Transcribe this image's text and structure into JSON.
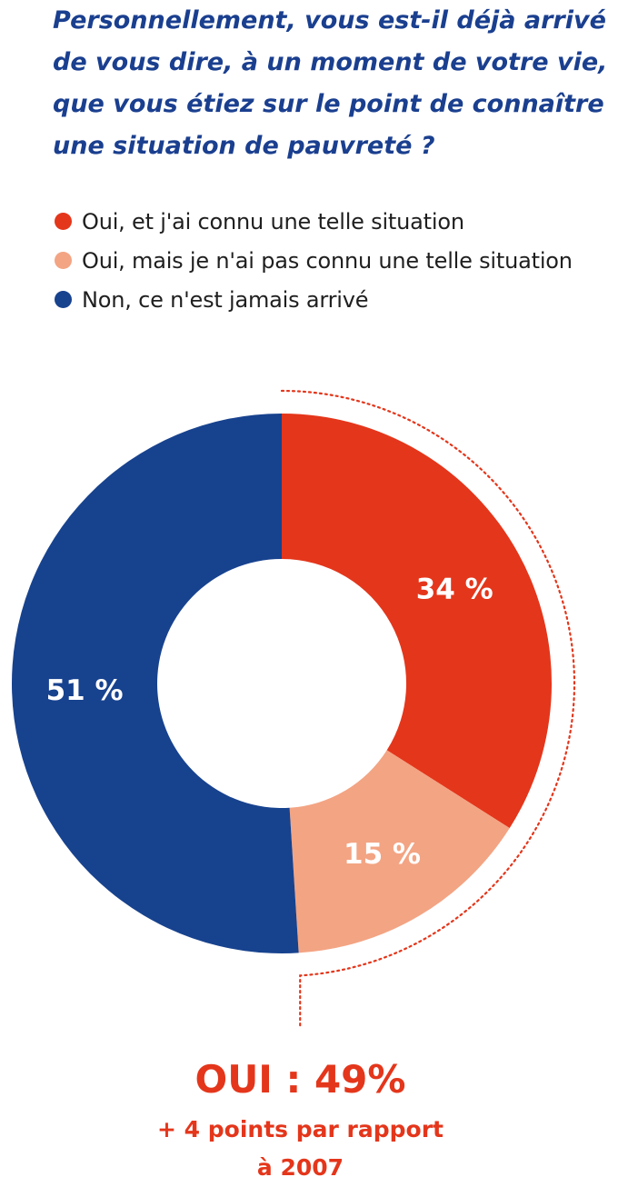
{
  "colors": {
    "title": "#1a3f8f",
    "summary": "#e4361b"
  },
  "chart_data": {
    "type": "pie",
    "variant": "donut",
    "title": "Personnellement, vous est-il déjà arrivé de vous dire, à un moment de votre vie, que vous étiez sur le point de connaître une situation de pauvreté ?",
    "slices": [
      {
        "name": "Oui, et j'ai connu une telle situation",
        "value": 34,
        "label": "34 %",
        "color": "#e4361b"
      },
      {
        "name": "Oui, mais je n'ai pas connu une telle situation",
        "value": 15,
        "label": "15 %",
        "color": "#f3a483"
      },
      {
        "name": "Non, ce n'est jamais arrivé",
        "value": 51,
        "label": "51 %",
        "color": "#17428e"
      }
    ],
    "legend_position": "top-left",
    "annotation": {
      "main": "OUI : 49%",
      "sub_line1": "+ 4 points par rapport",
      "sub_line2": "à 2007"
    }
  }
}
